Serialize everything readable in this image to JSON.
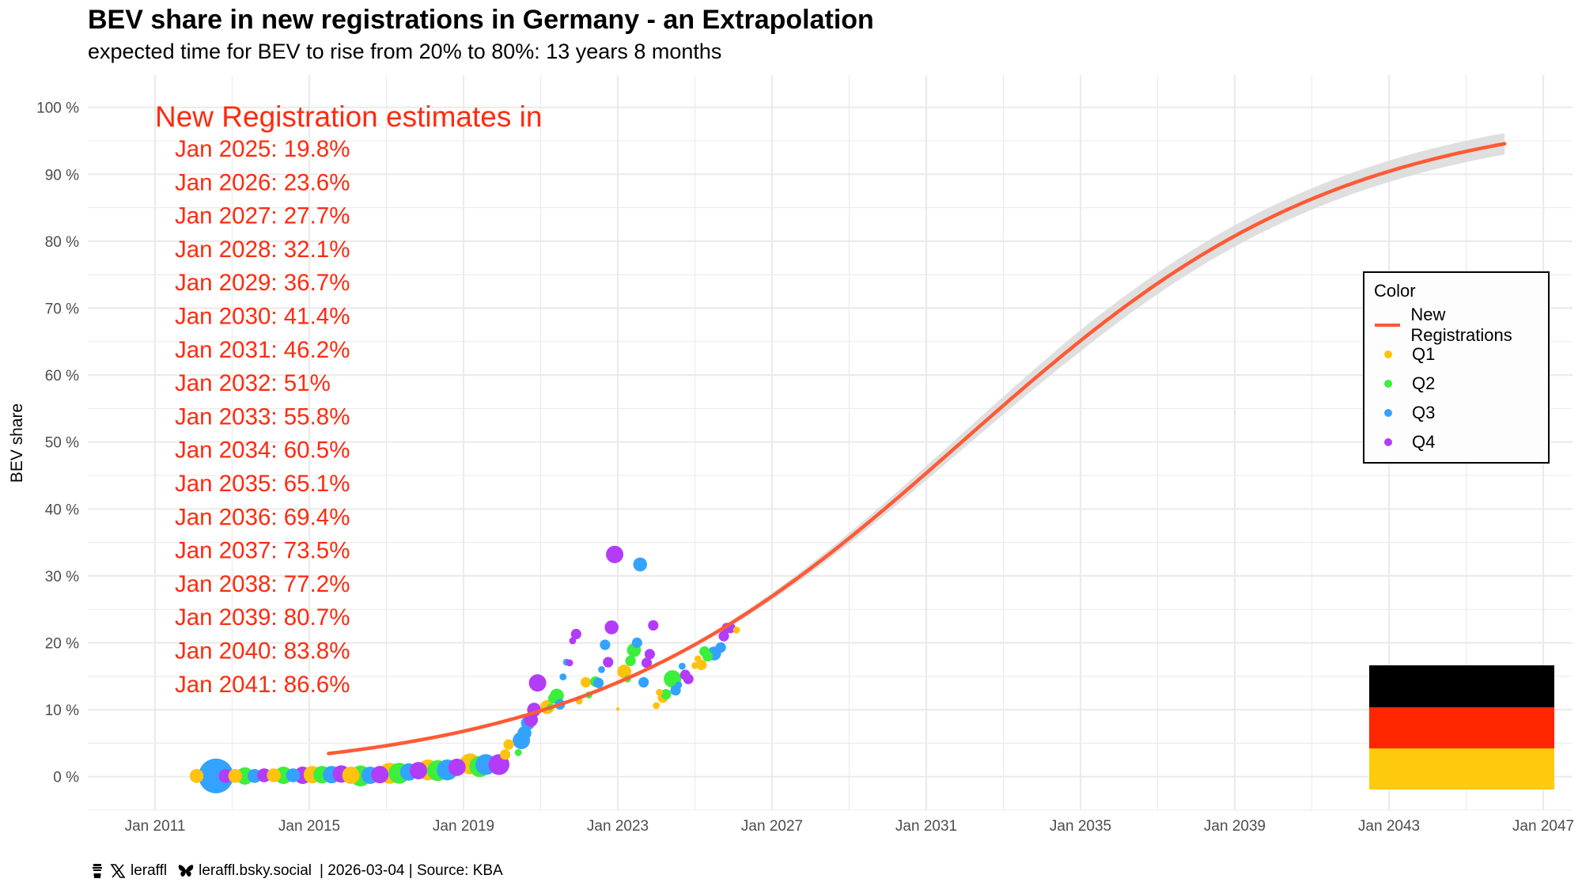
{
  "title": "BEV share in new registrations in Germany - an Extrapolation",
  "subtitle": "expected time for BEV to rise from 20% to 80%: 13 years 8 months",
  "caption": {
    "x_handle": "leraffl",
    "bsky_handle": "leraffl.bsky.social",
    "rest": "| 2026-03-04 | Source: KBA",
    "icons": [
      "coffee-cup-icon",
      "x-logo-icon",
      "butterfly-icon"
    ]
  },
  "legend": {
    "title": "Color",
    "items": [
      {
        "label": "New Registrations",
        "type": "line",
        "color": "#ff5a36"
      },
      {
        "label": "Q1",
        "type": "point",
        "color": "#ffc20e"
      },
      {
        "label": "Q2",
        "type": "point",
        "color": "#3bef3b"
      },
      {
        "label": "Q3",
        "type": "point",
        "color": "#33a3ff"
      },
      {
        "label": "Q4",
        "type": "point",
        "color": "#b23cf7"
      }
    ]
  },
  "annotation": {
    "heading": "New Registration estimates in",
    "lines": [
      "Jan 2025: 19.8%",
      "Jan 2026: 23.6%",
      "Jan 2027: 27.7%",
      "Jan 2028: 32.1%",
      "Jan 2029: 36.7%",
      "Jan 2030: 41.4%",
      "Jan 2031: 46.2%",
      "Jan 2032: 51%",
      "Jan 2033: 55.8%",
      "Jan 2034: 60.5%",
      "Jan 2035: 65.1%",
      "Jan 2036: 69.4%",
      "Jan 2037: 73.5%",
      "Jan 2038: 77.2%",
      "Jan 2039: 80.7%",
      "Jan 2040: 83.8%",
      "Jan 2041: 86.6%"
    ],
    "color": "#ff2a0f"
  },
  "flag": {
    "name": "Germany",
    "colors": [
      "#000000",
      "#ff2600",
      "#ffc90e"
    ]
  },
  "chart_data": {
    "type": "line",
    "title": "BEV share in new registrations in Germany - an Extrapolation",
    "xlabel": "",
    "ylabel": "BEV share",
    "xlim": [
      2010.2,
      2047.7
    ],
    "ylim": [
      -5,
      103
    ],
    "x_ticks": [
      2011,
      2015,
      2019,
      2023,
      2027,
      2031,
      2035,
      2039,
      2043,
      2047
    ],
    "x_tick_labels": [
      "Jan 2011",
      "Jan 2015",
      "Jan 2019",
      "Jan 2023",
      "Jan 2027",
      "Jan 2031",
      "Jan 2035",
      "Jan 2039",
      "Jan 2043",
      "Jan 2047"
    ],
    "y_ticks": [
      0,
      10,
      20,
      30,
      40,
      50,
      60,
      70,
      80,
      90,
      100
    ],
    "y_tick_labels": [
      "0 %",
      "10 %",
      "20 %",
      "30 %",
      "40 %",
      "50 %",
      "60 %",
      "70 %",
      "80 %",
      "90 %",
      "100 %"
    ],
    "grid": true,
    "legend_position": "right",
    "fit": {
      "name": "New Registrations",
      "model": "logistic",
      "midpoint_year": 2031.92,
      "rate_per_year": 0.2028,
      "x_start": 2015.5,
      "x_end": 2046.0,
      "band_halfwidth_pct_max": 1.6,
      "color": "#ff5a36",
      "band_color": "#d9d9d9"
    },
    "points": [
      {
        "x": 2012.08,
        "y": 0.1,
        "q": "Q1",
        "s": 4
      },
      {
        "x": 2012.58,
        "y": 0.1,
        "q": "Q3",
        "s": 10
      },
      {
        "x": 2012.83,
        "y": 0.1,
        "q": "Q4",
        "s": 4
      },
      {
        "x": 2013.08,
        "y": 0.1,
        "q": "Q1",
        "s": 4
      },
      {
        "x": 2013.33,
        "y": 0.1,
        "q": "Q2",
        "s": 5
      },
      {
        "x": 2013.58,
        "y": 0.1,
        "q": "Q3",
        "s": 4
      },
      {
        "x": 2013.83,
        "y": 0.2,
        "q": "Q4",
        "s": 4
      },
      {
        "x": 2014.08,
        "y": 0.2,
        "q": "Q1",
        "s": 4
      },
      {
        "x": 2014.33,
        "y": 0.2,
        "q": "Q2",
        "s": 5
      },
      {
        "x": 2014.58,
        "y": 0.2,
        "q": "Q3",
        "s": 4
      },
      {
        "x": 2014.83,
        "y": 0.2,
        "q": "Q4",
        "s": 5
      },
      {
        "x": 2015.08,
        "y": 0.3,
        "q": "Q1",
        "s": 5
      },
      {
        "x": 2015.33,
        "y": 0.3,
        "q": "Q2",
        "s": 5
      },
      {
        "x": 2015.58,
        "y": 0.3,
        "q": "Q3",
        "s": 5
      },
      {
        "x": 2015.83,
        "y": 0.4,
        "q": "Q4",
        "s": 5
      },
      {
        "x": 2016.08,
        "y": 0.2,
        "q": "Q1",
        "s": 5
      },
      {
        "x": 2016.33,
        "y": 0.1,
        "q": "Q2",
        "s": 6
      },
      {
        "x": 2016.58,
        "y": 0.2,
        "q": "Q3",
        "s": 5
      },
      {
        "x": 2016.83,
        "y": 0.3,
        "q": "Q4",
        "s": 5
      },
      {
        "x": 2017.08,
        "y": 0.5,
        "q": "Q1",
        "s": 6
      },
      {
        "x": 2017.33,
        "y": 0.5,
        "q": "Q2",
        "s": 6
      },
      {
        "x": 2017.58,
        "y": 0.7,
        "q": "Q3",
        "s": 5
      },
      {
        "x": 2017.83,
        "y": 0.9,
        "q": "Q4",
        "s": 5
      },
      {
        "x": 2018.08,
        "y": 1.0,
        "q": "Q1",
        "s": 6
      },
      {
        "x": 2018.33,
        "y": 0.9,
        "q": "Q2",
        "s": 6
      },
      {
        "x": 2018.58,
        "y": 1.0,
        "q": "Q3",
        "s": 6
      },
      {
        "x": 2018.83,
        "y": 1.4,
        "q": "Q4",
        "s": 5
      },
      {
        "x": 2019.17,
        "y": 1.9,
        "q": "Q1",
        "s": 6
      },
      {
        "x": 2019.42,
        "y": 1.5,
        "q": "Q2",
        "s": 6
      },
      {
        "x": 2019.58,
        "y": 1.8,
        "q": "Q3",
        "s": 6
      },
      {
        "x": 2019.92,
        "y": 1.8,
        "q": "Q4",
        "s": 6
      },
      {
        "x": 2020.08,
        "y": 3.3,
        "q": "Q1",
        "s": 3
      },
      {
        "x": 2020.17,
        "y": 4.8,
        "q": "Q1",
        "s": 3
      },
      {
        "x": 2020.42,
        "y": 3.6,
        "q": "Q2",
        "s": 2
      },
      {
        "x": 2020.5,
        "y": 5.4,
        "q": "Q3",
        "s": 5
      },
      {
        "x": 2020.58,
        "y": 6.5,
        "q": "Q3",
        "s": 4
      },
      {
        "x": 2020.67,
        "y": 8.0,
        "q": "Q3",
        "s": 4
      },
      {
        "x": 2020.75,
        "y": 8.5,
        "q": "Q4",
        "s": 4
      },
      {
        "x": 2020.83,
        "y": 10.0,
        "q": "Q4",
        "s": 4
      },
      {
        "x": 2020.92,
        "y": 14.0,
        "q": "Q4",
        "s": 5
      },
      {
        "x": 2021.17,
        "y": 10.4,
        "q": "Q1",
        "s": 4
      },
      {
        "x": 2021.25,
        "y": 10.4,
        "q": "Q2",
        "s": 2
      },
      {
        "x": 2021.33,
        "y": 11.7,
        "q": "Q2",
        "s": 3
      },
      {
        "x": 2021.42,
        "y": 12.1,
        "q": "Q2",
        "s": 4
      },
      {
        "x": 2021.5,
        "y": 10.8,
        "q": "Q3",
        "s": 3
      },
      {
        "x": 2021.58,
        "y": 14.9,
        "q": "Q3",
        "s": 2
      },
      {
        "x": 2021.67,
        "y": 17.1,
        "q": "Q3",
        "s": 2
      },
      {
        "x": 2021.75,
        "y": 17.0,
        "q": "Q4",
        "s": 2
      },
      {
        "x": 2021.83,
        "y": 20.3,
        "q": "Q4",
        "s": 2
      },
      {
        "x": 2021.92,
        "y": 21.3,
        "q": "Q4",
        "s": 3
      },
      {
        "x": 2022.0,
        "y": 11.3,
        "q": "Q1",
        "s": 2
      },
      {
        "x": 2022.17,
        "y": 14.1,
        "q": "Q1",
        "s": 3
      },
      {
        "x": 2022.25,
        "y": 12.2,
        "q": "Q2",
        "s": 2
      },
      {
        "x": 2022.42,
        "y": 14.2,
        "q": "Q2",
        "s": 3
      },
      {
        "x": 2022.5,
        "y": 14.0,
        "q": "Q3",
        "s": 3
      },
      {
        "x": 2022.58,
        "y": 16.0,
        "q": "Q3",
        "s": 2
      },
      {
        "x": 2022.67,
        "y": 19.7,
        "q": "Q3",
        "s": 3
      },
      {
        "x": 2022.75,
        "y": 17.1,
        "q": "Q4",
        "s": 3
      },
      {
        "x": 2022.84,
        "y": 22.3,
        "q": "Q4",
        "s": 4
      },
      {
        "x": 2022.92,
        "y": 33.2,
        "q": "Q4",
        "s": 5
      },
      {
        "x": 2023.0,
        "y": 10.1,
        "q": "Q1",
        "s": 1
      },
      {
        "x": 2023.17,
        "y": 15.7,
        "q": "Q1",
        "s": 4
      },
      {
        "x": 2023.25,
        "y": 14.6,
        "q": "Q2",
        "s": 2
      },
      {
        "x": 2023.33,
        "y": 17.3,
        "q": "Q2",
        "s": 3
      },
      {
        "x": 2023.42,
        "y": 18.9,
        "q": "Q2",
        "s": 4
      },
      {
        "x": 2023.5,
        "y": 20.0,
        "q": "Q3",
        "s": 3
      },
      {
        "x": 2023.58,
        "y": 31.7,
        "q": "Q3",
        "s": 4
      },
      {
        "x": 2023.67,
        "y": 14.1,
        "q": "Q3",
        "s": 3
      },
      {
        "x": 2023.75,
        "y": 17.0,
        "q": "Q4",
        "s": 3
      },
      {
        "x": 2023.83,
        "y": 18.3,
        "q": "Q4",
        "s": 3
      },
      {
        "x": 2023.92,
        "y": 22.6,
        "q": "Q4",
        "s": 3
      },
      {
        "x": 2024.0,
        "y": 10.6,
        "q": "Q1",
        "s": 2
      },
      {
        "x": 2024.08,
        "y": 12.6,
        "q": "Q1",
        "s": 2
      },
      {
        "x": 2024.17,
        "y": 11.8,
        "q": "Q1",
        "s": 3
      },
      {
        "x": 2024.25,
        "y": 12.3,
        "q": "Q2",
        "s": 3
      },
      {
        "x": 2024.42,
        "y": 14.6,
        "q": "Q2",
        "s": 5
      },
      {
        "x": 2024.5,
        "y": 12.9,
        "q": "Q3",
        "s": 3
      },
      {
        "x": 2024.58,
        "y": 13.7,
        "q": "Q3",
        "s": 2
      },
      {
        "x": 2024.67,
        "y": 16.5,
        "q": "Q3",
        "s": 2
      },
      {
        "x": 2024.75,
        "y": 15.2,
        "q": "Q4",
        "s": 3
      },
      {
        "x": 2024.83,
        "y": 14.6,
        "q": "Q4",
        "s": 3
      },
      {
        "x": 2025.0,
        "y": 16.6,
        "q": "Q1",
        "s": 2
      },
      {
        "x": 2025.08,
        "y": 17.6,
        "q": "Q1",
        "s": 2
      },
      {
        "x": 2025.17,
        "y": 16.7,
        "q": "Q1",
        "s": 3
      },
      {
        "x": 2025.25,
        "y": 18.7,
        "q": "Q2",
        "s": 3
      },
      {
        "x": 2025.33,
        "y": 18.0,
        "q": "Q2",
        "s": 3
      },
      {
        "x": 2025.5,
        "y": 18.4,
        "q": "Q3",
        "s": 4
      },
      {
        "x": 2025.67,
        "y": 19.3,
        "q": "Q3",
        "s": 3
      },
      {
        "x": 2025.75,
        "y": 21.0,
        "q": "Q4",
        "s": 3
      },
      {
        "x": 2025.83,
        "y": 22.2,
        "q": "Q4",
        "s": 3
      },
      {
        "x": 2025.92,
        "y": 22.2,
        "q": "Q4",
        "s": 3
      },
      {
        "x": 2026.08,
        "y": 21.9,
        "q": "Q1",
        "s": 2
      }
    ]
  }
}
